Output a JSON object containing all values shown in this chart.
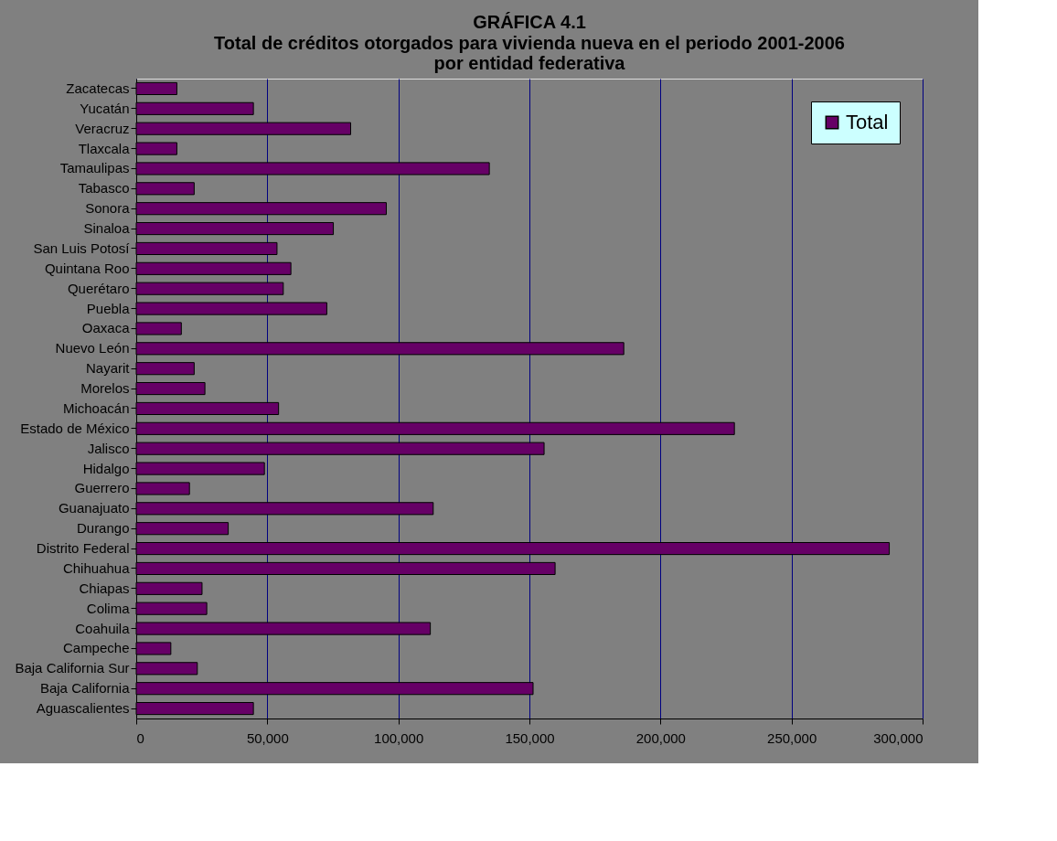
{
  "chart_data": {
    "type": "bar",
    "orientation": "horizontal",
    "title": "GRÁFICA 4.1",
    "subtitle": "Total de créditos otorgados para vivienda nueva en el periodo 2001-2006\npor entidad federativa",
    "categories": [
      "Zacatecas",
      "Yucatán",
      "Veracruz",
      "Tlaxcala",
      "Tamaulipas",
      "Tabasco",
      "Sonora",
      "Sinaloa",
      "San Luis Potosí",
      "Quintana Roo",
      "Querétaro",
      "Puebla",
      "Oaxaca",
      "Nuevo León",
      "Nayarit",
      "Morelos",
      "Michoacán",
      "Estado de México",
      "Jalisco",
      "Hidalgo",
      "Guerrero",
      "Guanajuato",
      "Durango",
      "Distrito Federal",
      "Chihuahua",
      "Chiapas",
      "Colima",
      "Coahuila",
      "Campeche",
      "Baja California Sur",
      "Baja California",
      "Aguascalientes"
    ],
    "series": [
      {
        "name": "Total",
        "color": "#660066",
        "values": [
          15500,
          44700,
          81800,
          15500,
          134700,
          22100,
          95400,
          75200,
          53700,
          59000,
          56100,
          72700,
          17200,
          186000,
          22100,
          26200,
          54300,
          228200,
          155600,
          48900,
          20300,
          113300,
          35100,
          287300,
          159800,
          25100,
          26900,
          112200,
          13200,
          23300,
          151400,
          44700
        ]
      }
    ],
    "xlim": [
      0,
      300000
    ],
    "xticks": [
      {
        "value": 0,
        "label": "0"
      },
      {
        "value": 50000,
        "label": "50,000"
      },
      {
        "value": 100000,
        "label": "100,000"
      },
      {
        "value": 150000,
        "label": "150,000"
      },
      {
        "value": 200000,
        "label": "200,000"
      },
      {
        "value": 250000,
        "label": "250,000"
      },
      {
        "value": 300000,
        "label": "300,000"
      }
    ],
    "grid": "x",
    "legend": "top right"
  }
}
